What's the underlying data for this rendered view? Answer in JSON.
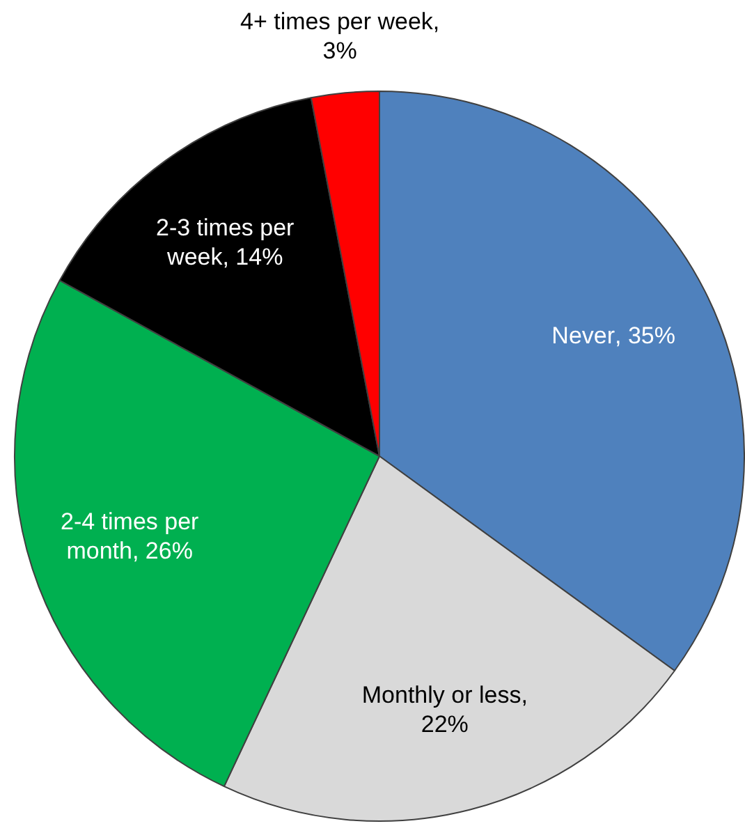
{
  "chart_data": {
    "type": "pie",
    "categories": [
      "Never",
      "Monthly or less",
      "2-4 times per month",
      "2-3 times per week",
      "4+ times per week"
    ],
    "values": [
      35,
      22,
      26,
      14,
      3
    ],
    "value_labels": [
      ", 35%",
      ", 22%",
      ", 26%",
      ", 14%",
      ", 3%"
    ],
    "colors": [
      "#4f81bd",
      "#d9d9d9",
      "#00b050",
      "#000000",
      "#ff0000"
    ],
    "legend": false
  }
}
